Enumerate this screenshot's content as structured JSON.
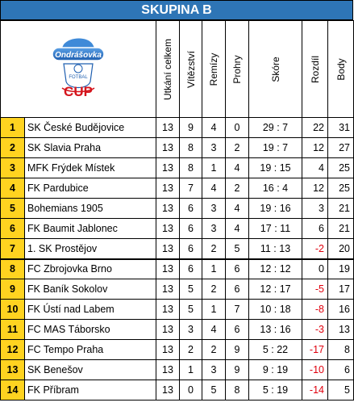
{
  "title": "SKUPINA B",
  "logo": {
    "brand": "Ondrášovka",
    "sub": "FOTBAL",
    "cup": "CUP"
  },
  "headers": {
    "matches": "Utkání celkem",
    "wins": "Vítězství",
    "draws": "Remízy",
    "losses": "Prohry",
    "score": "Skóre",
    "diff": "Rozdíl",
    "points": "Body"
  },
  "colors": {
    "title_bg": "#2e75b6",
    "rank_bg": "#ffd320",
    "negative": "#e0000d"
  },
  "rows": [
    {
      "rank": "1",
      "team": "SK České Budějovice",
      "p": "13",
      "w": "9",
      "d": "4",
      "l": "0",
      "score": "29 : 7",
      "diff": "22",
      "pts": "31"
    },
    {
      "rank": "2",
      "team": "SK Slavia Praha",
      "p": "13",
      "w": "8",
      "d": "3",
      "l": "2",
      "score": "19 : 7",
      "diff": "12",
      "pts": "27"
    },
    {
      "rank": "3",
      "team": "MFK Frýdek Místek",
      "p": "13",
      "w": "8",
      "d": "1",
      "l": "4",
      "score": "19 : 15",
      "diff": "4",
      "pts": "25"
    },
    {
      "rank": "4",
      "team": "FK Pardubice",
      "p": "13",
      "w": "7",
      "d": "4",
      "l": "2",
      "score": "16 : 4",
      "diff": "12",
      "pts": "25"
    },
    {
      "rank": "5",
      "team": "Bohemians 1905",
      "p": "13",
      "w": "6",
      "d": "3",
      "l": "4",
      "score": "19 : 16",
      "diff": "3",
      "pts": "21"
    },
    {
      "rank": "6",
      "team": "FK Baumit Jablonec",
      "p": "13",
      "w": "6",
      "d": "3",
      "l": "4",
      "score": "17 : 11",
      "diff": "6",
      "pts": "21"
    },
    {
      "rank": "7",
      "team": "1. SK Prostějov",
      "p": "13",
      "w": "6",
      "d": "2",
      "l": "5",
      "score": "11 : 13",
      "diff": "-2",
      "pts": "20"
    },
    {
      "rank": "8",
      "team": "FC Zbrojovka Brno",
      "p": "13",
      "w": "6",
      "d": "1",
      "l": "6",
      "score": "12 : 12",
      "diff": "0",
      "pts": "19"
    },
    {
      "rank": "9",
      "team": "FK Baník Sokolov",
      "p": "13",
      "w": "5",
      "d": "2",
      "l": "6",
      "score": "12 : 17",
      "diff": "-5",
      "pts": "17"
    },
    {
      "rank": "10",
      "team": "FK Ústí nad Labem",
      "p": "13",
      "w": "5",
      "d": "1",
      "l": "7",
      "score": "10 : 18",
      "diff": "-8",
      "pts": "16"
    },
    {
      "rank": "11",
      "team": "FC MAS Táborsko",
      "p": "13",
      "w": "3",
      "d": "4",
      "l": "6",
      "score": "13 : 16",
      "diff": "-3",
      "pts": "13"
    },
    {
      "rank": "12",
      "team": "FC Tempo Praha",
      "p": "13",
      "w": "2",
      "d": "2",
      "l": "9",
      "score": "5 : 22",
      "diff": "-17",
      "pts": "8"
    },
    {
      "rank": "13",
      "team": "SK Benešov",
      "p": "13",
      "w": "1",
      "d": "3",
      "l": "9",
      "score": "9 : 19",
      "diff": "-10",
      "pts": "6"
    },
    {
      "rank": "14",
      "team": "FK Příbram",
      "p": "13",
      "w": "0",
      "d": "5",
      "l": "8",
      "score": "5 : 19",
      "diff": "-14",
      "pts": "5"
    }
  ]
}
